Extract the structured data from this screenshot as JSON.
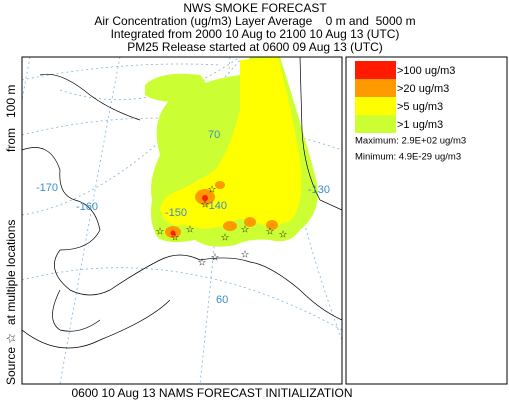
{
  "header": {
    "title": "NWS SMOKE FORECAST",
    "lines": [
      "Air Concentration (ug/m3) Layer Average    0 m and  5000 m",
      "Integrated from 2000 10 Aug to 2100 10 Aug 13 (UTC)",
      "PM25 Release started at 0600 09 Aug 13 (UTC)"
    ]
  },
  "legend": {
    "items": [
      {
        "label": ">100 ug/m3",
        "color": "#ff1a00"
      },
      {
        "label": ">20 ug/m3",
        "color": "#ff9900"
      },
      {
        "label": ">5 ug/m3",
        "color": "#ffff00"
      },
      {
        "label": ">1 ug/m3",
        "color": "#ccff33"
      }
    ],
    "maximum": "Maximum: 2.9E+02 ug/m3",
    "minimum": "Minimum: 4.9E-29 ug/m3"
  },
  "side_labels": [
    "Source ☆",
    "at multiple locations",
    "from   100 m"
  ],
  "map_labels": [
    "-170",
    "-160",
    "-150",
    "-140",
    "-130",
    "70",
    "60"
  ],
  "footer": "0600 10 Aug 13 NAMS FORECAST INITIALIZATION"
}
